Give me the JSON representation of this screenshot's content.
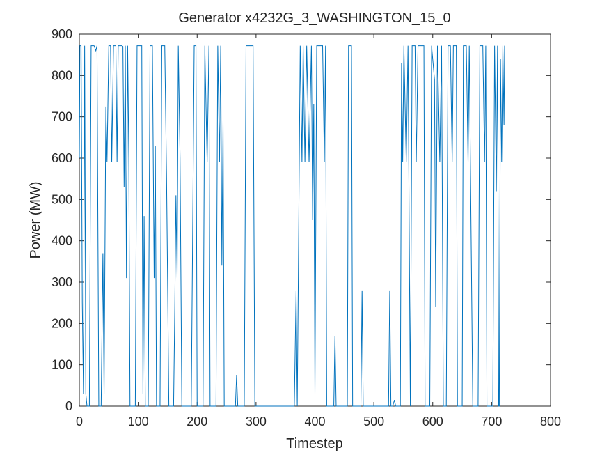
{
  "chart_data": {
    "type": "line",
    "title": "Generator x4232G_3_WASHINGTON_15_0",
    "x_label": "Timestep",
    "y_label": "Power (MW)",
    "x": [
      0,
      1,
      3,
      5,
      7,
      9,
      11,
      13,
      17,
      20,
      25,
      28,
      30,
      33,
      37,
      40,
      42,
      45,
      47,
      50,
      53,
      55,
      58,
      62,
      64,
      66,
      72,
      74,
      76,
      78,
      80,
      82,
      84,
      86,
      95,
      98,
      106,
      108,
      110,
      112,
      117,
      120,
      124,
      127,
      129,
      131,
      137,
      140,
      145,
      148,
      152,
      160,
      162,
      164,
      166,
      168,
      171,
      174,
      190,
      195,
      198,
      200,
      210,
      213,
      217,
      220,
      222,
      232,
      235,
      238,
      240,
      242,
      244,
      246,
      265,
      267,
      269,
      280,
      283,
      295,
      298,
      365,
      368,
      370,
      375,
      378,
      380,
      383,
      386,
      390,
      394,
      396,
      398,
      400,
      403,
      413,
      416,
      418,
      420,
      432,
      434,
      436,
      455,
      457,
      462,
      464,
      478,
      480,
      482,
      525,
      527,
      529,
      532,
      535,
      537,
      545,
      547,
      549,
      551,
      555,
      558,
      562,
      565,
      570,
      572,
      575,
      585,
      587,
      595,
      598,
      603,
      605,
      608,
      612,
      615,
      618,
      623,
      626,
      630,
      633,
      635,
      640,
      642,
      650,
      652,
      657,
      660,
      662,
      668,
      677,
      680,
      685,
      688,
      690,
      692,
      702,
      705,
      708,
      710,
      712,
      713,
      715,
      717,
      719,
      721,
      722
    ],
    "series": [
      {
        "name": "Power",
        "color": "#0072bd",
        "values": [
          600,
          872,
          872,
          250,
          30,
          872,
          30,
          0,
          0,
          872,
          872,
          860,
          872,
          0,
          0,
          370,
          30,
          725,
          590,
          872,
          872,
          590,
          872,
          872,
          590,
          872,
          872,
          870,
          530,
          872,
          310,
          872,
          600,
          0,
          0,
          872,
          872,
          30,
          460,
          0,
          0,
          872,
          872,
          310,
          630,
          0,
          0,
          872,
          872,
          560,
          0,
          0,
          230,
          510,
          310,
          872,
          600,
          0,
          0,
          872,
          872,
          0,
          0,
          872,
          590,
          872,
          0,
          0,
          872,
          590,
          872,
          340,
          690,
          0,
          0,
          75,
          0,
          0,
          872,
          872,
          0,
          0,
          280,
          0,
          872,
          590,
          872,
          590,
          872,
          590,
          872,
          450,
          730,
          30,
          872,
          872,
          590,
          872,
          0,
          0,
          170,
          0,
          0,
          872,
          872,
          0,
          0,
          280,
          0,
          0,
          280,
          0,
          0,
          15,
          0,
          0,
          830,
          590,
          872,
          590,
          872,
          0,
          872,
          872,
          590,
          872,
          872,
          0,
          0,
          872,
          790,
          240,
          872,
          590,
          872,
          0,
          0,
          872,
          872,
          590,
          872,
          872,
          0,
          0,
          872,
          872,
          590,
          872,
          0,
          0,
          872,
          872,
          590,
          872,
          0,
          0,
          872,
          520,
          872,
          0,
          0,
          840,
          590,
          872,
          680,
          872
        ]
      }
    ],
    "xlim": [
      0,
      800
    ],
    "xticks": [
      0,
      100,
      200,
      300,
      400,
      500,
      600,
      700,
      800
    ],
    "ylim": [
      0,
      900
    ],
    "yticks": [
      0,
      100,
      200,
      300,
      400,
      500,
      600,
      700,
      800,
      900
    ]
  }
}
